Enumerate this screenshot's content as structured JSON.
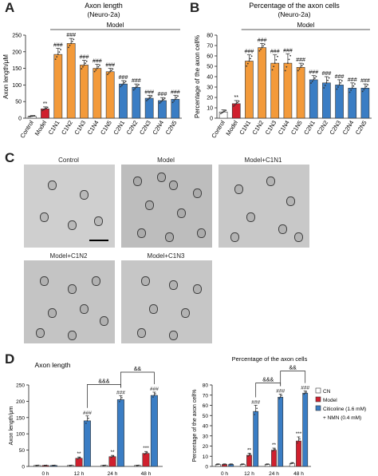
{
  "panels": {
    "A": "A",
    "B": "B",
    "C": "C",
    "D": "D"
  },
  "colors": {
    "control": "#ffffff",
    "model": "#d0202e",
    "c1": "#f39a3a",
    "c2": "#3a7dc4",
    "dark": "#222222"
  },
  "chart_data": [
    {
      "type": "bar",
      "panel": "A",
      "title": "Axon length",
      "subtitle": "(Neuro-2a)",
      "ylabel": "Axon length/μM",
      "group_label": "Model",
      "categories": [
        "Control",
        "Model",
        "C1N1",
        "C1N2",
        "C1N3",
        "C1N4",
        "C1N5",
        "C2N1",
        "C2N2",
        "C2N3",
        "C2N4",
        "C2N5"
      ],
      "values": [
        6,
        28,
        192,
        225,
        160,
        150,
        140,
        103,
        93,
        60,
        53,
        57
      ],
      "errors": [
        2,
        6,
        18,
        15,
        14,
        12,
        10,
        10,
        10,
        9,
        9,
        12
      ],
      "annotations": [
        "",
        "**",
        "###",
        "###",
        "###",
        "###",
        "###",
        "###",
        "###",
        "###",
        "###",
        "###"
      ],
      "ylim": [
        0,
        250
      ],
      "yticks": [
        0,
        50,
        100,
        150,
        200,
        250
      ]
    },
    {
      "type": "bar",
      "panel": "B",
      "title": "Percentage of the axon cells",
      "subtitle": "(Neuro-2a)",
      "ylabel": "Percentage of the axon cell%",
      "group_label": "Model",
      "categories": [
        "Control",
        "Model",
        "C1N1",
        "C1N2",
        "C1N3",
        "C1N4",
        "C1N5",
        "C2N1",
        "C2N2",
        "C2N3",
        "C2N4",
        "C2N5"
      ],
      "values": [
        6,
        14,
        55,
        68,
        53,
        53,
        49,
        37,
        34,
        32,
        29,
        29
      ],
      "errors": [
        2,
        3,
        6,
        4,
        8,
        9,
        4,
        4,
        6,
        5,
        5,
        4
      ],
      "annotations": [
        "",
        "**",
        "###",
        "###",
        "###",
        "###",
        "###",
        "###",
        "###",
        "###",
        "###",
        "###"
      ],
      "ylim": [
        0,
        80
      ],
      "yticks": [
        0,
        10,
        20,
        30,
        40,
        50,
        60,
        70,
        80
      ]
    },
    {
      "type": "bar",
      "panel": "D-left",
      "title": "Axon length",
      "ylabel": "Axon length/μm",
      "categories": [
        "0 h",
        "12 h",
        "24 h",
        "48 h"
      ],
      "series": [
        {
          "name": "CN",
          "values": [
            3,
            3,
            3,
            3
          ],
          "errors": [
            1,
            1,
            1,
            1
          ]
        },
        {
          "name": "Model",
          "values": [
            3,
            25,
            30,
            40
          ],
          "errors": [
            1,
            4,
            4,
            6
          ]
        },
        {
          "name": "Citicoline (1.6 mM) + NMN (0.4 mM)",
          "values": [
            3,
            140,
            205,
            218
          ],
          "errors": [
            1,
            15,
            12,
            10
          ]
        }
      ],
      "annotations": [
        {
          "category": "12 h",
          "model": "**",
          "treat": "###"
        },
        {
          "category": "24 h",
          "model": "**",
          "treat": "###"
        },
        {
          "category": "48 h",
          "model": "***",
          "treat": "###"
        }
      ],
      "brackets": [
        {
          "from": "12 h",
          "to": "24 h",
          "label": "&&&"
        },
        {
          "from": "24 h",
          "to": "48 h",
          "label": "&&"
        }
      ],
      "ylim": [
        0,
        250
      ],
      "yticks": [
        0,
        50,
        100,
        150,
        200,
        250
      ]
    },
    {
      "type": "bar",
      "panel": "D-right",
      "title": "Percentage of the axon cells",
      "ylabel": "Percentage of the axon cell%",
      "categories": [
        "0 h",
        "12 h",
        "24 h",
        "48 h"
      ],
      "series": [
        {
          "name": "CN",
          "values": [
            2,
            2,
            2,
            3
          ],
          "errors": [
            0.5,
            0.5,
            0.5,
            0.8
          ]
        },
        {
          "name": "Model",
          "values": [
            2,
            11,
            16,
            25
          ],
          "errors": [
            0.5,
            2,
            2,
            4
          ]
        },
        {
          "name": "Citicoline (1.6 mM) + NMN (0.4 mM)",
          "values": [
            2,
            54,
            68,
            72
          ],
          "errors": [
            0.5,
            6,
            3,
            2
          ]
        }
      ],
      "annotations": [
        {
          "category": "12 h",
          "model": "**",
          "treat": "###"
        },
        {
          "category": "24 h",
          "model": "**",
          "treat": "###"
        },
        {
          "category": "48 h",
          "model": "***",
          "treat": "###"
        }
      ],
      "brackets": [
        {
          "from": "12 h",
          "to": "24 h",
          "label": "&&&"
        },
        {
          "from": "24 h",
          "to": "48 h",
          "label": "&&"
        }
      ],
      "legend": [
        "CN",
        "Model",
        "Citicoline (1.6 mM)",
        "+ NMN (0.4 mM)"
      ],
      "ylim": [
        0,
        80
      ],
      "yticks": [
        0,
        10,
        20,
        30,
        40,
        50,
        60,
        70,
        80
      ]
    }
  ],
  "micrographs": {
    "labels": [
      "Control",
      "Model",
      "Model+C1N1",
      "Model+C1N2",
      "Model+C1N3"
    ]
  }
}
